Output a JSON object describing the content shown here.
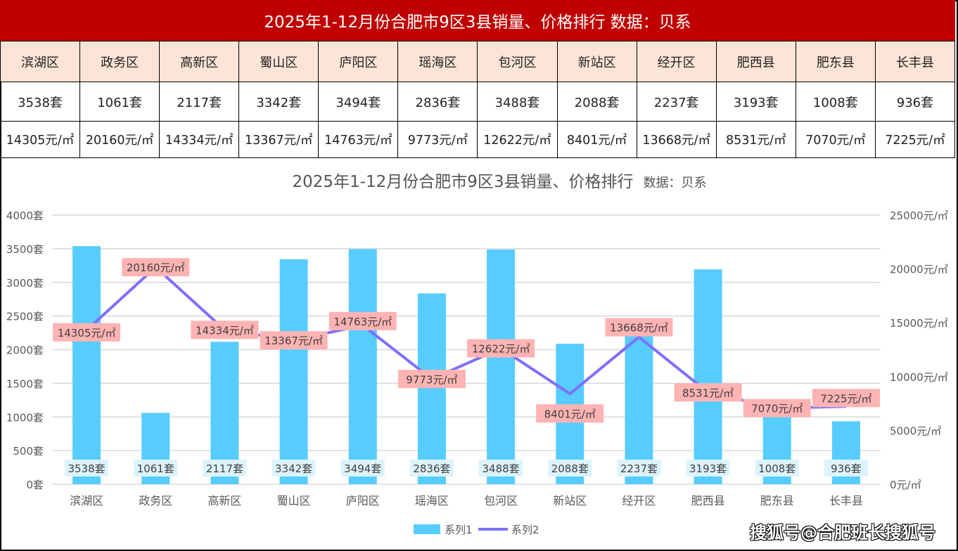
{
  "header": {
    "title": "2025年1-12月份合肥市9区3县销量、价格排行  数据：贝系"
  },
  "table": {
    "districts": [
      "滨湖区",
      "政务区",
      "高新区",
      "蜀山区",
      "庐阳区",
      "瑶海区",
      "包河区",
      "新站区",
      "经开区",
      "肥西县",
      "肥东县",
      "长丰县"
    ],
    "units": [
      "3538套",
      "1061套",
      "2117套",
      "3342套",
      "3494套",
      "2836套",
      "3488套",
      "2088套",
      "2237套",
      "3193套",
      "1008套",
      "936套"
    ],
    "prices": [
      "14305元/㎡",
      "20160元/㎡",
      "14334元/㎡",
      "13367元/㎡",
      "14763元/㎡",
      "9773元/㎡",
      "12622元/㎡",
      "8401元/㎡",
      "13668元/㎡",
      "8531元/㎡",
      "7070元/㎡",
      "7225元/㎡"
    ]
  },
  "chart_data": {
    "type": "bar+line",
    "title": "2025年1-12月份合肥市9区3县销量、价格排行",
    "subtitle": "数据：贝系",
    "categories": [
      "滨湖区",
      "政务区",
      "高新区",
      "蜀山区",
      "庐阳区",
      "瑶海区",
      "包河区",
      "新站区",
      "经开区",
      "肥西县",
      "肥东县",
      "长丰县"
    ],
    "series": [
      {
        "name": "系列1",
        "type": "bar",
        "axis": "left",
        "color": "#57cdff",
        "values": [
          3538,
          1061,
          2117,
          3342,
          3494,
          2836,
          3488,
          2088,
          2237,
          3193,
          1008,
          936
        ],
        "unit": "套"
      },
      {
        "name": "系列2",
        "type": "line",
        "axis": "right",
        "color": "#7f6fff",
        "values": [
          14305,
          20160,
          14334,
          13367,
          14763,
          9773,
          12622,
          8401,
          13668,
          8531,
          7070,
          7225
        ],
        "unit": "元/㎡"
      }
    ],
    "left_axis": {
      "range": [
        0,
        4000
      ],
      "ticks": [
        "0套",
        "500套",
        "1000套",
        "1500套",
        "2000套",
        "2500套",
        "3000套",
        "3500套",
        "4000套"
      ]
    },
    "right_axis": {
      "range": [
        0,
        25000
      ],
      "ticks": [
        "0元/㎡",
        "5000元/㎡",
        "10000元/㎡",
        "15000元/㎡",
        "20000元/㎡",
        "25000元/㎡"
      ]
    },
    "grid": true,
    "legend": "bottom",
    "bar_label_bg": "#ddf3fb",
    "line_label_bg": "#ffb3b3"
  },
  "watermark": "搜狐号@合肥班长搜狐号"
}
